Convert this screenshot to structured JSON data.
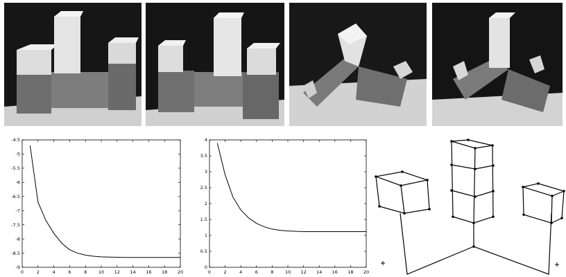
{
  "chart_data": [
    {
      "type": "line",
      "title": "",
      "xlabel": "",
      "ylabel": "",
      "xlim": [
        0,
        20
      ],
      "ylim": [
        -9,
        -4.5
      ],
      "xticks": [
        0,
        2,
        4,
        6,
        8,
        10,
        12,
        14,
        16,
        18,
        20
      ],
      "yticks": [
        -9,
        -8.5,
        -8,
        -7.5,
        -7,
        -6.5,
        -6,
        -5.5,
        -5,
        -4.5
      ],
      "ytick_labels": [
        "-9",
        "-8.5",
        "-8",
        "-7.5",
        "-7",
        "-6.5",
        "-6",
        "-5.5",
        "-5",
        "-4.5"
      ],
      "series": [
        {
          "x": [
            1,
            2,
            3,
            4,
            5,
            6,
            7,
            8,
            9,
            10,
            11,
            12,
            13,
            14,
            15,
            16,
            17,
            18,
            19,
            20
          ],
          "values": [
            -4.7,
            -6.7,
            -7.35,
            -7.8,
            -8.15,
            -8.38,
            -8.5,
            -8.57,
            -8.61,
            -8.63,
            -8.64,
            -8.645,
            -8.65,
            -8.65,
            -8.65,
            -8.65,
            -8.65,
            -8.65,
            -8.65,
            -8.65
          ]
        }
      ]
    },
    {
      "type": "line",
      "title": "",
      "xlabel": "",
      "ylabel": "",
      "xlim": [
        0,
        20
      ],
      "ylim": [
        0,
        4
      ],
      "xticks": [
        0,
        2,
        4,
        6,
        8,
        10,
        12,
        14,
        16,
        18,
        20
      ],
      "yticks": [
        0,
        0.5,
        1,
        1.5,
        2,
        2.5,
        3,
        3.5,
        4
      ],
      "ytick_labels": [
        "0",
        "0.5",
        "1",
        "1.5",
        "2",
        "2.5",
        "3",
        "3.5",
        "4"
      ],
      "series": [
        {
          "x": [
            1,
            2,
            3,
            4,
            5,
            6,
            7,
            8,
            9,
            10,
            11,
            12,
            13,
            14,
            15,
            16,
            17,
            18,
            19,
            20
          ],
          "values": [
            3.9,
            2.9,
            2.2,
            1.8,
            1.55,
            1.38,
            1.27,
            1.2,
            1.16,
            1.14,
            1.13,
            1.12,
            1.12,
            1.12,
            1.12,
            1.12,
            1.12,
            1.12,
            1.12,
            1.12
          ]
        }
      ]
    }
  ],
  "colors": {
    "line": "#000000",
    "photo_background": "#111111",
    "block_light": "#e6e6e6",
    "block_dark": "#7a7a7a"
  },
  "photos": [
    "block-structure-view-1",
    "block-structure-view-2",
    "block-structure-view-3",
    "block-structure-view-4"
  ],
  "reconstruction": "wireframe-block-structure"
}
